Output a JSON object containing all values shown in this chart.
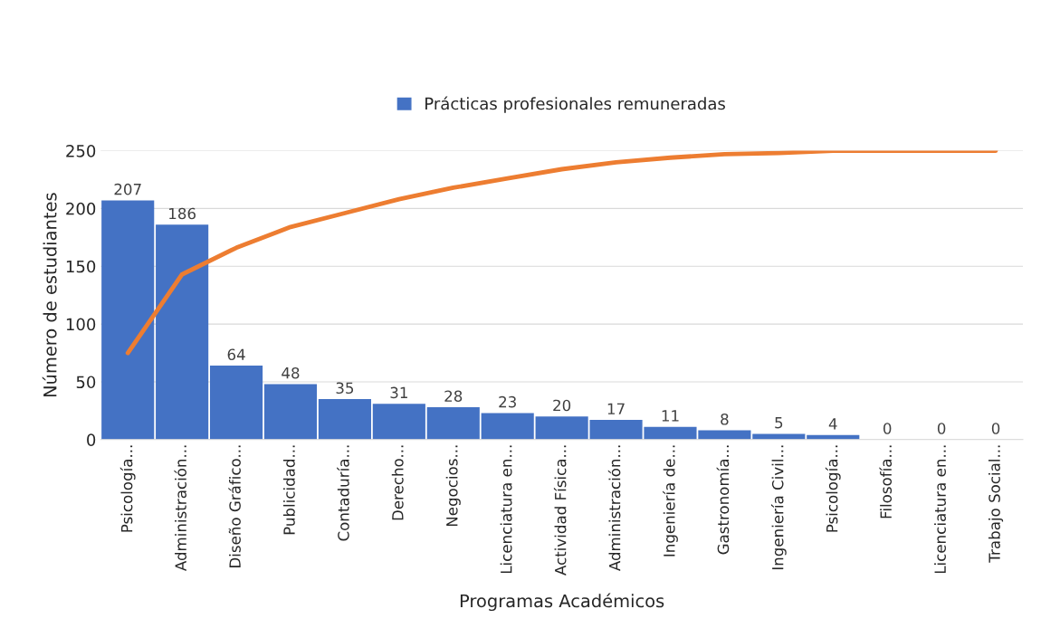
{
  "chart_data": {
    "type": "bar",
    "xlabel": "Programas Académicos",
    "ylabel": "Número de estudiantes",
    "categories": [
      "Psicología...",
      "Administración...",
      "Diseño Gráfico...",
      "Publicidad...",
      "Contaduría...",
      "Derecho...",
      "Negocios...",
      "Licenciatura en...",
      "Actividad Física...",
      "Administración...",
      "Ingeniería de...",
      "Gastronomía...",
      "Ingeniería Civil...",
      "Psicología...",
      "Filosofía...",
      "Licenciatura en...",
      "Trabajo Social..."
    ],
    "series": [
      {
        "name": "Prácticas profesionales remuneradas",
        "color": "#4472c4",
        "values": [
          207,
          186,
          64,
          48,
          35,
          31,
          28,
          23,
          20,
          17,
          11,
          8,
          5,
          4,
          0,
          0,
          0
        ],
        "value_labels": [
          "207",
          "186",
          "64",
          "48",
          "35",
          "31",
          "28",
          "23",
          "20",
          "17",
          "11",
          "8",
          "5",
          "4",
          "0",
          "0",
          "0"
        ]
      },
      {
        "type": "line",
        "color": "#ed7d31",
        "values": [
          75,
          143,
          166,
          184,
          196,
          208,
          218,
          226,
          234,
          240,
          244,
          247,
          248,
          250,
          250,
          250,
          250
        ]
      }
    ],
    "ylim": [
      0,
      250
    ],
    "yticks": [
      0,
      50,
      100,
      150,
      200,
      250
    ],
    "grid": "y",
    "legend": "top",
    "marker": "none",
    "line_style": "solid"
  }
}
